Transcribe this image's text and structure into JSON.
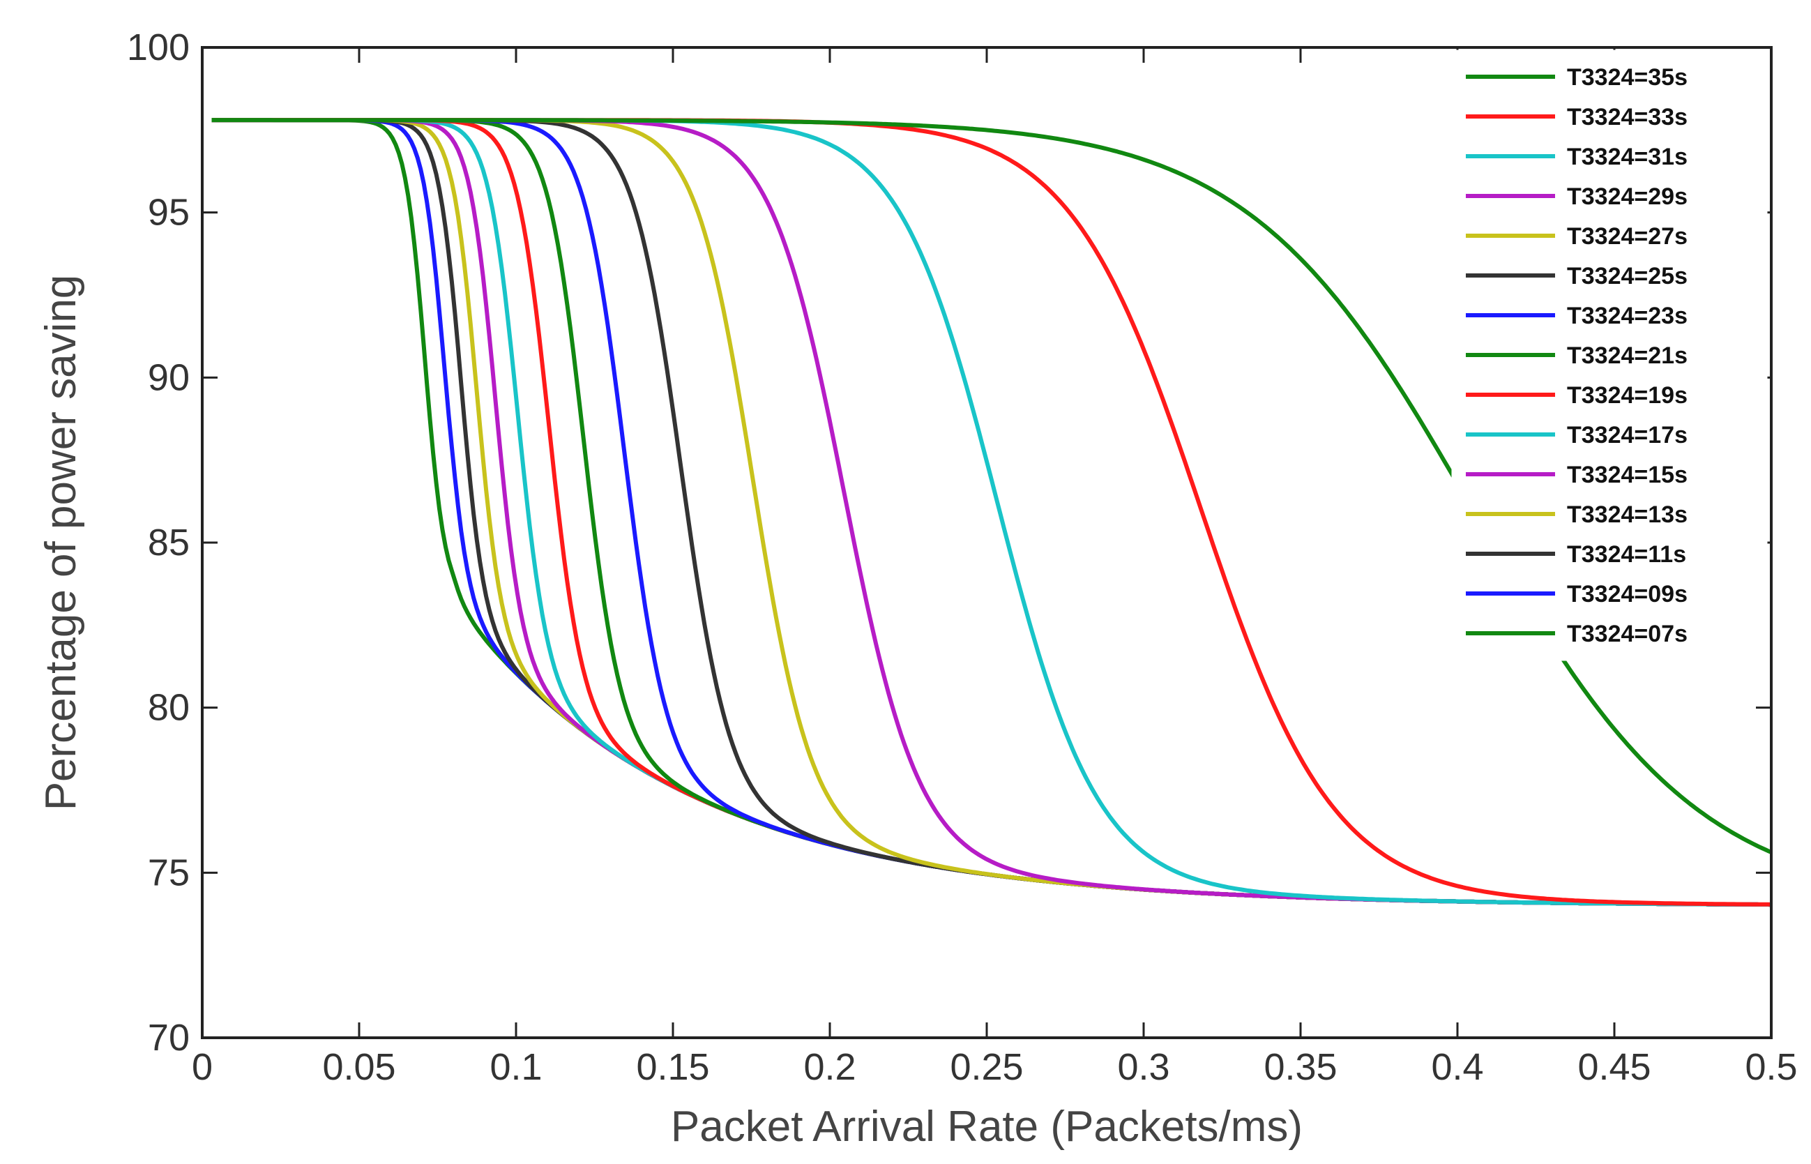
{
  "chart_data": {
    "type": "line",
    "title": "",
    "xlabel": "Packet Arrival Rate (Packets/ms)",
    "ylabel": "Percentage of power saving",
    "xlim": [
      0,
      0.5
    ],
    "ylim": [
      70,
      100
    ],
    "x_ticks": [
      "0",
      "0.05",
      "0.1",
      "0.15",
      "0.2",
      "0.25",
      "0.3",
      "0.35",
      "0.4",
      "0.45",
      "0.5"
    ],
    "y_ticks": [
      "70",
      "75",
      "80",
      "85",
      "90",
      "95",
      "100"
    ],
    "grid": false,
    "legend_position": "top-right",
    "curve_model": {
      "initial_value": 97.8,
      "description": "Each series starts at 97.8% and decays sigmoidally toward a common envelope; plateau value approximated by midpoint x0 and width w (in Packets/ms)."
    },
    "series": [
      {
        "name": "T3324=35s",
        "color": "#118811",
        "x0": 0.405,
        "w": 0.036
      },
      {
        "name": "T3324=33s",
        "color": "#ff1a1a",
        "x0": 0.318,
        "w": 0.021
      },
      {
        "name": "T3324=31s",
        "color": "#19c4c8",
        "x0": 0.253,
        "w": 0.0158
      },
      {
        "name": "T3324=29s",
        "color": "#b61cc6",
        "x0": 0.204,
        "w": 0.0118
      },
      {
        "name": "T3324=27s",
        "color": "#c8c21c",
        "x0": 0.175,
        "w": 0.0092
      },
      {
        "name": "T3324=25s",
        "color": "#333333",
        "x0": 0.152,
        "w": 0.0077
      },
      {
        "name": "T3324=23s",
        "color": "#1a1aff",
        "x0": 0.134,
        "w": 0.0066
      },
      {
        "name": "T3324=21s",
        "color": "#118811",
        "x0": 0.121,
        "w": 0.0058
      },
      {
        "name": "T3324=19s",
        "color": "#ff1a1a",
        "x0": 0.11,
        "w": 0.0052
      },
      {
        "name": "T3324=17s",
        "color": "#19c4c8",
        "x0": 0.1,
        "w": 0.0047
      },
      {
        "name": "T3324=15s",
        "color": "#b61cc6",
        "x0": 0.093,
        "w": 0.0042
      },
      {
        "name": "T3324=13s",
        "color": "#c8c21c",
        "x0": 0.087,
        "w": 0.0039
      },
      {
        "name": "T3324=11s",
        "color": "#333333",
        "x0": 0.082,
        "w": 0.0036
      },
      {
        "name": "T3324=09s",
        "color": "#1a1aff",
        "x0": 0.077,
        "w": 0.0034
      },
      {
        "name": "T3324=07s",
        "color": "#118811",
        "x0": 0.071,
        "w": 0.0032
      }
    ]
  }
}
